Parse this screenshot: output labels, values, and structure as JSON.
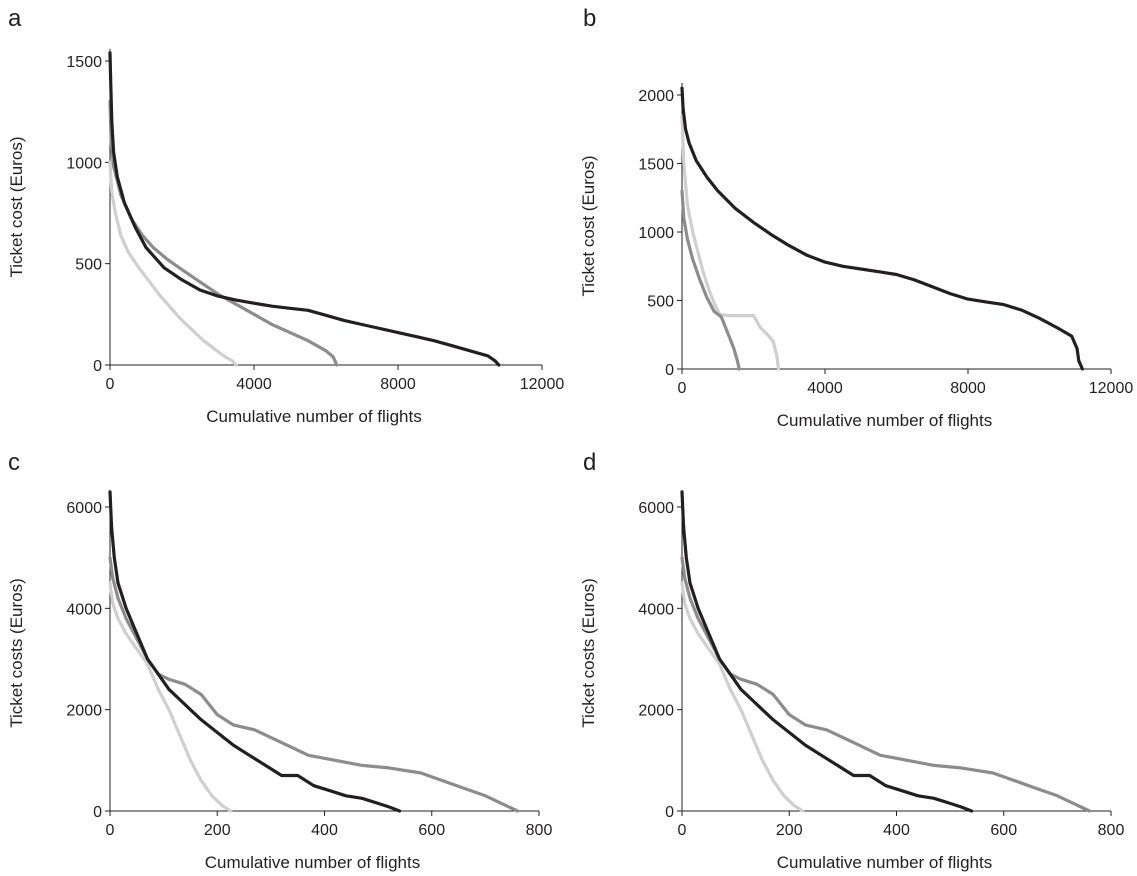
{
  "colors": {
    "axis": "#231f20",
    "series_dark": "#231f20",
    "series_mid": "#8c8c8c",
    "series_light": "#cfcfcf"
  },
  "chart_data": [
    {
      "panel": "a",
      "type": "line",
      "xlabel": "Cumulative number of flights",
      "ylabel": "Ticket cost (Euros)",
      "xlim": [
        0,
        12000
      ],
      "ylim": [
        0,
        1500
      ],
      "xticks": [
        0,
        4000,
        8000,
        12000
      ],
      "yticks": [
        0,
        500,
        1000,
        1500
      ],
      "grid": false,
      "series": [
        {
          "color": "#231f20",
          "points": [
            [
              0,
              1540
            ],
            [
              20,
              1400
            ],
            [
              50,
              1200
            ],
            [
              100,
              1050
            ],
            [
              200,
              930
            ],
            [
              400,
              800
            ],
            [
              700,
              680
            ],
            [
              1000,
              580
            ],
            [
              1500,
              480
            ],
            [
              2000,
              420
            ],
            [
              2500,
              370
            ],
            [
              3000,
              340
            ],
            [
              3500,
              320
            ],
            [
              4000,
              305
            ],
            [
              4500,
              290
            ],
            [
              5000,
              280
            ],
            [
              5500,
              270
            ],
            [
              6000,
              245
            ],
            [
              6500,
              220
            ],
            [
              7000,
              200
            ],
            [
              7500,
              180
            ],
            [
              8000,
              160
            ],
            [
              8500,
              140
            ],
            [
              9000,
              120
            ],
            [
              9500,
              95
            ],
            [
              10000,
              70
            ],
            [
              10500,
              45
            ],
            [
              10700,
              20
            ],
            [
              10800,
              0
            ]
          ]
        },
        {
          "color": "#8c8c8c",
          "points": [
            [
              0,
              1300
            ],
            [
              30,
              1100
            ],
            [
              100,
              980
            ],
            [
              300,
              840
            ],
            [
              600,
              720
            ],
            [
              900,
              640
            ],
            [
              1200,
              580
            ],
            [
              1600,
              520
            ],
            [
              2000,
              470
            ],
            [
              2500,
              410
            ],
            [
              3000,
              350
            ],
            [
              3500,
              300
            ],
            [
              4000,
              250
            ],
            [
              4500,
              200
            ],
            [
              5000,
              160
            ],
            [
              5500,
              120
            ],
            [
              6000,
              70
            ],
            [
              6200,
              40
            ],
            [
              6300,
              0
            ]
          ]
        },
        {
          "color": "#cfcfcf",
          "points": [
            [
              0,
              1000
            ],
            [
              50,
              850
            ],
            [
              150,
              750
            ],
            [
              300,
              640
            ],
            [
              500,
              560
            ],
            [
              800,
              480
            ],
            [
              1100,
              410
            ],
            [
              1400,
              340
            ],
            [
              1700,
              280
            ],
            [
              2000,
              220
            ],
            [
              2300,
              170
            ],
            [
              2600,
              120
            ],
            [
              2900,
              80
            ],
            [
              3200,
              40
            ],
            [
              3400,
              20
            ],
            [
              3500,
              0
            ]
          ]
        }
      ]
    },
    {
      "panel": "b",
      "type": "line",
      "xlabel": "Cumulative number of flights",
      "ylabel": "Ticket cost (Euros)",
      "xlim": [
        0,
        12000
      ],
      "ylim": [
        0,
        2000
      ],
      "xticks": [
        0,
        4000,
        8000,
        12000
      ],
      "yticks": [
        0,
        500,
        1000,
        1500,
        2000
      ],
      "grid": false,
      "series": [
        {
          "color": "#231f20",
          "points": [
            [
              0,
              2050
            ],
            [
              30,
              1900
            ],
            [
              100,
              1750
            ],
            [
              200,
              1650
            ],
            [
              400,
              1520
            ],
            [
              700,
              1400
            ],
            [
              1000,
              1300
            ],
            [
              1500,
              1170
            ],
            [
              2000,
              1070
            ],
            [
              2500,
              980
            ],
            [
              3000,
              900
            ],
            [
              3500,
              830
            ],
            [
              4000,
              780
            ],
            [
              4500,
              750
            ],
            [
              5000,
              730
            ],
            [
              5500,
              710
            ],
            [
              6000,
              690
            ],
            [
              6500,
              650
            ],
            [
              7000,
              600
            ],
            [
              7500,
              550
            ],
            [
              8000,
              510
            ],
            [
              8500,
              490
            ],
            [
              9000,
              470
            ],
            [
              9500,
              430
            ],
            [
              10000,
              370
            ],
            [
              10500,
              300
            ],
            [
              10900,
              240
            ],
            [
              11050,
              150
            ],
            [
              11100,
              60
            ],
            [
              11200,
              0
            ]
          ]
        },
        {
          "color": "#8c8c8c",
          "points": [
            [
              0,
              1300
            ],
            [
              50,
              1100
            ],
            [
              150,
              950
            ],
            [
              300,
              800
            ],
            [
              500,
              650
            ],
            [
              700,
              520
            ],
            [
              900,
              420
            ],
            [
              1100,
              380
            ],
            [
              1300,
              250
            ],
            [
              1450,
              150
            ],
            [
              1550,
              60
            ],
            [
              1600,
              0
            ]
          ]
        },
        {
          "color": "#cfcfcf",
          "points": [
            [
              0,
              1850
            ],
            [
              50,
              1500
            ],
            [
              150,
              1200
            ],
            [
              300,
              1000
            ],
            [
              450,
              850
            ],
            [
              600,
              700
            ],
            [
              750,
              580
            ],
            [
              900,
              480
            ],
            [
              1050,
              400
            ],
            [
              1300,
              390
            ],
            [
              1600,
              390
            ],
            [
              2000,
              390
            ],
            [
              2200,
              300
            ],
            [
              2400,
              250
            ],
            [
              2550,
              200
            ],
            [
              2650,
              100
            ],
            [
              2700,
              0
            ]
          ]
        }
      ]
    },
    {
      "panel": "c",
      "type": "line",
      "xlabel": "Cumulative number of flights",
      "ylabel": "Ticket costs (Euros)",
      "xlim": [
        0,
        800
      ],
      "ylim": [
        0,
        6000
      ],
      "xticks": [
        0,
        200,
        400,
        600,
        800
      ],
      "yticks": [
        0,
        2000,
        4000,
        6000
      ],
      "grid": false,
      "series": [
        {
          "color": "#231f20",
          "points": [
            [
              0,
              6300
            ],
            [
              3,
              5600
            ],
            [
              8,
              5000
            ],
            [
              15,
              4500
            ],
            [
              30,
              4000
            ],
            [
              50,
              3500
            ],
            [
              70,
              3000
            ],
            [
              90,
              2700
            ],
            [
              110,
              2400
            ],
            [
              130,
              2200
            ],
            [
              150,
              2000
            ],
            [
              170,
              1800
            ],
            [
              200,
              1550
            ],
            [
              230,
              1300
            ],
            [
              260,
              1100
            ],
            [
              290,
              900
            ],
            [
              320,
              700
            ],
            [
              350,
              700
            ],
            [
              380,
              500
            ],
            [
              410,
              400
            ],
            [
              440,
              300
            ],
            [
              470,
              250
            ],
            [
              500,
              150
            ],
            [
              520,
              80
            ],
            [
              540,
              0
            ]
          ]
        },
        {
          "color": "#8c8c8c",
          "points": [
            [
              0,
              5000
            ],
            [
              5,
              4600
            ],
            [
              15,
              4200
            ],
            [
              30,
              3800
            ],
            [
              50,
              3400
            ],
            [
              70,
              3000
            ],
            [
              90,
              2700
            ],
            [
              110,
              2600
            ],
            [
              140,
              2500
            ],
            [
              170,
              2300
            ],
            [
              200,
              1900
            ],
            [
              230,
              1700
            ],
            [
              270,
              1600
            ],
            [
              320,
              1350
            ],
            [
              370,
              1100
            ],
            [
              420,
              1000
            ],
            [
              470,
              900
            ],
            [
              520,
              850
            ],
            [
              580,
              750
            ],
            [
              620,
              600
            ],
            [
              660,
              450
            ],
            [
              700,
              300
            ],
            [
              730,
              150
            ],
            [
              750,
              50
            ],
            [
              760,
              0
            ]
          ]
        },
        {
          "color": "#cfcfcf",
          "points": [
            [
              0,
              4500
            ],
            [
              5,
              4100
            ],
            [
              15,
              3800
            ],
            [
              30,
              3500
            ],
            [
              50,
              3200
            ],
            [
              70,
              2900
            ],
            [
              90,
              2400
            ],
            [
              110,
              2000
            ],
            [
              130,
              1500
            ],
            [
              150,
              1000
            ],
            [
              170,
              600
            ],
            [
              190,
              300
            ],
            [
              210,
              100
            ],
            [
              225,
              0
            ]
          ]
        }
      ]
    },
    {
      "panel": "d",
      "type": "line",
      "xlabel": "Cumulative number of flights",
      "ylabel": "Ticket costs (Euros)",
      "xlim": [
        0,
        800
      ],
      "ylim": [
        0,
        6000
      ],
      "xticks": [
        0,
        200,
        400,
        600,
        800
      ],
      "yticks": [
        0,
        2000,
        4000,
        6000
      ],
      "grid": false,
      "series": [
        {
          "color": "#231f20",
          "points": [
            [
              0,
              6300
            ],
            [
              3,
              5600
            ],
            [
              8,
              5000
            ],
            [
              15,
              4500
            ],
            [
              30,
              4000
            ],
            [
              50,
              3500
            ],
            [
              70,
              3000
            ],
            [
              90,
              2700
            ],
            [
              110,
              2400
            ],
            [
              130,
              2200
            ],
            [
              150,
              2000
            ],
            [
              170,
              1800
            ],
            [
              200,
              1550
            ],
            [
              230,
              1300
            ],
            [
              260,
              1100
            ],
            [
              290,
              900
            ],
            [
              320,
              700
            ],
            [
              350,
              700
            ],
            [
              380,
              500
            ],
            [
              410,
              400
            ],
            [
              440,
              300
            ],
            [
              470,
              250
            ],
            [
              500,
              150
            ],
            [
              520,
              80
            ],
            [
              540,
              0
            ]
          ]
        },
        {
          "color": "#8c8c8c",
          "points": [
            [
              0,
              5000
            ],
            [
              5,
              4600
            ],
            [
              15,
              4200
            ],
            [
              30,
              3800
            ],
            [
              50,
              3400
            ],
            [
              70,
              3000
            ],
            [
              90,
              2700
            ],
            [
              110,
              2600
            ],
            [
              140,
              2500
            ],
            [
              170,
              2300
            ],
            [
              200,
              1900
            ],
            [
              230,
              1700
            ],
            [
              270,
              1600
            ],
            [
              320,
              1350
            ],
            [
              370,
              1100
            ],
            [
              420,
              1000
            ],
            [
              470,
              900
            ],
            [
              520,
              850
            ],
            [
              580,
              750
            ],
            [
              620,
              600
            ],
            [
              660,
              450
            ],
            [
              700,
              300
            ],
            [
              730,
              150
            ],
            [
              750,
              50
            ],
            [
              760,
              0
            ]
          ]
        },
        {
          "color": "#cfcfcf",
          "points": [
            [
              0,
              4500
            ],
            [
              5,
              4100
            ],
            [
              15,
              3800
            ],
            [
              30,
              3500
            ],
            [
              50,
              3200
            ],
            [
              70,
              2900
            ],
            [
              90,
              2400
            ],
            [
              110,
              2000
            ],
            [
              130,
              1500
            ],
            [
              150,
              1000
            ],
            [
              170,
              600
            ],
            [
              190,
              300
            ],
            [
              210,
              100
            ],
            [
              225,
              0
            ]
          ]
        }
      ]
    }
  ]
}
